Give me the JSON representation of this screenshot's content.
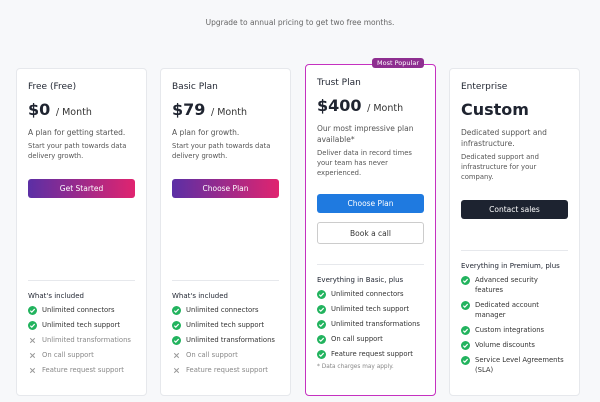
{
  "header": {
    "notice": "Upgrade to annual pricing to get two free months."
  },
  "plans": [
    {
      "name": "Free (Free)",
      "price": "$0",
      "period": "/ Month",
      "tagline": "A plan for getting started.",
      "description": "Start your path towards data delivery growth.",
      "buttons": [
        {
          "label": "Get Started",
          "style": "gradient"
        }
      ],
      "features_title": "What's included",
      "features": [
        {
          "text": "Unlimited connectors",
          "included": true
        },
        {
          "text": "Unlimited tech support",
          "included": true
        },
        {
          "text": "Unlimited transformations",
          "included": false
        },
        {
          "text": "On call support",
          "included": false
        },
        {
          "text": "Feature request support",
          "included": false
        }
      ]
    },
    {
      "name": "Basic Plan",
      "price": "$79",
      "period": "/ Month",
      "tagline": "A plan for growth.",
      "description": "Start your path towards data delivery growth.",
      "buttons": [
        {
          "label": "Choose Plan",
          "style": "gradient"
        }
      ],
      "features_title": "What's included",
      "features": [
        {
          "text": "Unlimited connectors",
          "included": true
        },
        {
          "text": "Unlimited tech support",
          "included": true
        },
        {
          "text": "Unlimited transformations",
          "included": true
        },
        {
          "text": "On call support",
          "included": false
        },
        {
          "text": "Feature request support",
          "included": false
        }
      ]
    },
    {
      "name": "Trust Plan",
      "badge": "Most Popular",
      "highlighted": true,
      "price": "$400",
      "period": "/ Month",
      "tagline": "Our most impressive plan available*",
      "description": "Deliver data in record times your team has never experienced.",
      "buttons": [
        {
          "label": "Choose Plan",
          "style": "primary"
        },
        {
          "label": "Book a call",
          "style": "outline"
        }
      ],
      "features_title": "Everything in Basic, plus",
      "features": [
        {
          "text": "Unlimited connectors",
          "included": true
        },
        {
          "text": "Unlimited tech support",
          "included": true
        },
        {
          "text": "Unlimited transformations",
          "included": true
        },
        {
          "text": "On call support",
          "included": true
        },
        {
          "text": "Feature request support",
          "included": true
        }
      ],
      "note": "* Data charges may apply."
    },
    {
      "name": "Enterprise",
      "price": "Custom",
      "tagline": "Dedicated support and infrastructure.",
      "description": "Dedicated support and infrastructure for your company.",
      "buttons": [
        {
          "label": "Contact sales",
          "style": "dark"
        }
      ],
      "features_title": "Everything in Premium, plus",
      "features": [
        {
          "text": "Advanced security features",
          "included": true
        },
        {
          "text": "Dedicated account manager",
          "included": true
        },
        {
          "text": "Custom integrations",
          "included": true
        },
        {
          "text": "Volume discounts",
          "included": true
        },
        {
          "text": "Service Level Agreements (SLA)",
          "included": true
        }
      ]
    }
  ]
}
